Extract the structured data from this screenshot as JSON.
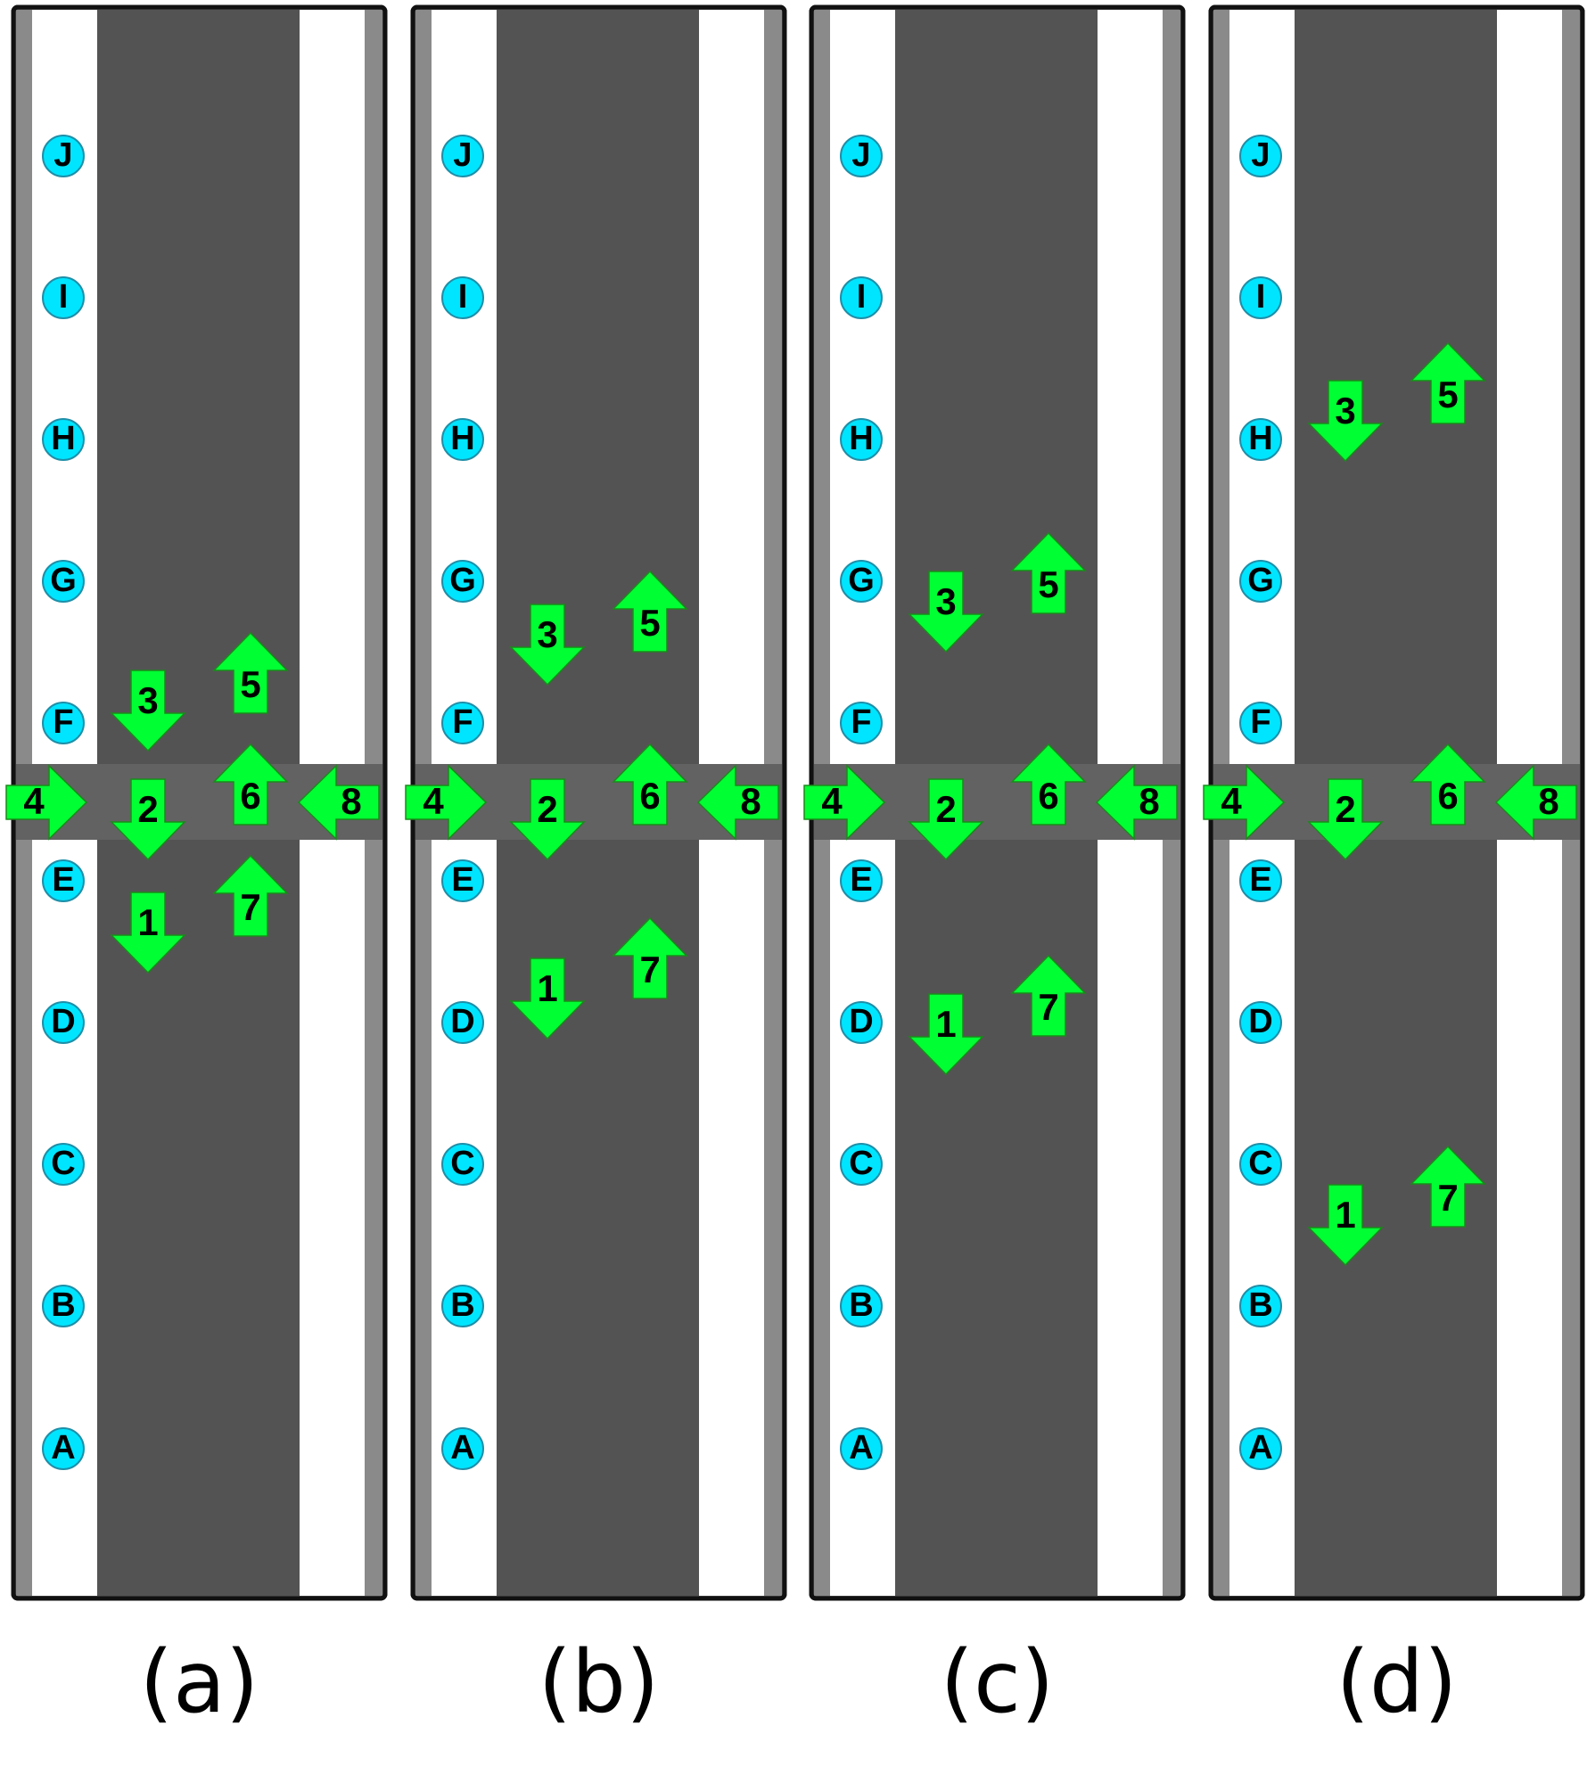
{
  "panels": [
    {
      "caption": "(a)",
      "arrows": [
        {
          "label": "1",
          "direction": "down"
        },
        {
          "label": "2",
          "direction": "down"
        },
        {
          "label": "3",
          "direction": "down"
        },
        {
          "label": "4",
          "direction": "right"
        },
        {
          "label": "5",
          "direction": "up"
        },
        {
          "label": "6",
          "direction": "up"
        },
        {
          "label": "7",
          "direction": "up"
        },
        {
          "label": "8",
          "direction": "left"
        }
      ]
    },
    {
      "caption": "(b)",
      "arrows": [
        {
          "label": "1",
          "direction": "down"
        },
        {
          "label": "2",
          "direction": "down"
        },
        {
          "label": "3",
          "direction": "down"
        },
        {
          "label": "4",
          "direction": "right"
        },
        {
          "label": "5",
          "direction": "up"
        },
        {
          "label": "6",
          "direction": "up"
        },
        {
          "label": "7",
          "direction": "up"
        },
        {
          "label": "8",
          "direction": "left"
        }
      ]
    },
    {
      "caption": "(c)",
      "arrows": [
        {
          "label": "1",
          "direction": "down"
        },
        {
          "label": "2",
          "direction": "down"
        },
        {
          "label": "3",
          "direction": "down"
        },
        {
          "label": "4",
          "direction": "right"
        },
        {
          "label": "5",
          "direction": "up"
        },
        {
          "label": "6",
          "direction": "up"
        },
        {
          "label": "7",
          "direction": "up"
        },
        {
          "label": "8",
          "direction": "left"
        }
      ]
    },
    {
      "caption": "(d)",
      "arrows": [
        {
          "label": "1",
          "direction": "down"
        },
        {
          "label": "2",
          "direction": "down"
        },
        {
          "label": "3",
          "direction": "down"
        },
        {
          "label": "4",
          "direction": "right"
        },
        {
          "label": "5",
          "direction": "up"
        },
        {
          "label": "6",
          "direction": "up"
        },
        {
          "label": "7",
          "direction": "up"
        },
        {
          "label": "8",
          "direction": "left"
        }
      ]
    }
  ],
  "markers": [
    "J",
    "I",
    "H",
    "G",
    "F",
    "E",
    "D",
    "C",
    "B",
    "A"
  ],
  "colors": {
    "road": "#535353",
    "crossing": "#626262",
    "curb": "#8a8a8a",
    "sidewalk": "#ffffff",
    "frame": "#111111",
    "arrow_fill": "#00ff33",
    "arrow_stroke": "#1a8a1a",
    "marker_fill": "#00e5ff",
    "marker_stroke": "#1e8fa8",
    "label_text": "#000000"
  }
}
